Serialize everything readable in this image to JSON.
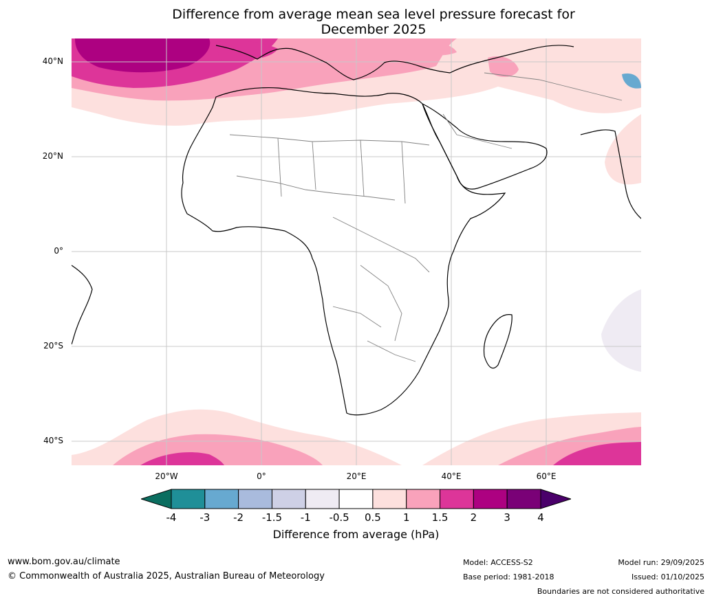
{
  "title": {
    "line1": "Difference from average mean sea level pressure forecast for",
    "line2": "December 2025"
  },
  "map": {
    "lat_labels": [
      "40°N",
      "20°N",
      "0°",
      "20°S",
      "40°S"
    ],
    "lon_labels": [
      "20°W",
      "0°",
      "20°E",
      "40°E",
      "60°E"
    ],
    "extent": {
      "lon_min": -40,
      "lon_max": 80,
      "lat_min": -45,
      "lat_max": 45
    }
  },
  "colorbar": {
    "ticks": [
      "-4",
      "-3",
      "-2",
      "-1.5",
      "-1",
      "-0.5",
      "0.5",
      "1",
      "1.5",
      "2",
      "3",
      "4"
    ],
    "colors": [
      "#0b6e60",
      "#1f8f98",
      "#67a9d0",
      "#a9bbdd",
      "#ced0e6",
      "#efebf3",
      "#ffffff",
      "#fde0de",
      "#f9a2bb",
      "#dd3599",
      "#ad0181",
      "#7a0177",
      "#4a006a"
    ],
    "label": "Difference from average (hPa)"
  },
  "footer": {
    "website": "www.bom.gov.au/climate",
    "copyright": "© Commonwealth of Australia 2025, Australian Bureau of Meteorology",
    "model": "Model: ACCESS-S2",
    "base_period": "Base period: 1981-2018",
    "model_run": "Model run: 29/09/2025",
    "issued": "Issued: 01/10/2025",
    "disclaimer": "Boundaries are not considered authoritative"
  }
}
